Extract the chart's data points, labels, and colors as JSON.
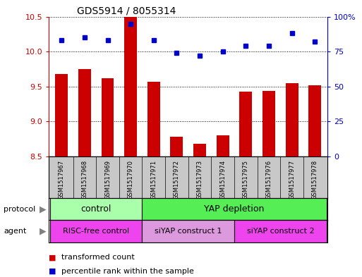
{
  "title": "GDS5914 / 8055314",
  "samples": [
    "GSM1517967",
    "GSM1517968",
    "GSM1517969",
    "GSM1517970",
    "GSM1517971",
    "GSM1517972",
    "GSM1517973",
    "GSM1517974",
    "GSM1517975",
    "GSM1517976",
    "GSM1517977",
    "GSM1517978"
  ],
  "transformed_counts": [
    9.68,
    9.75,
    9.62,
    10.5,
    9.57,
    8.78,
    8.68,
    8.8,
    9.43,
    9.44,
    9.55,
    9.52
  ],
  "percentile_ranks": [
    83,
    85,
    83,
    95,
    83,
    74,
    72,
    75,
    79,
    79,
    88,
    82
  ],
  "ylim_left": [
    8.5,
    10.5
  ],
  "ylim_right": [
    0,
    100
  ],
  "yticks_left": [
    8.5,
    9.0,
    9.5,
    10.0,
    10.5
  ],
  "yticks_right": [
    0,
    25,
    50,
    75,
    100
  ],
  "ytick_labels_right": [
    "0",
    "25",
    "50",
    "75",
    "100%"
  ],
  "bar_color": "#cc0000",
  "dot_color": "#0000cc",
  "protocol_groups": [
    {
      "label": "control",
      "start": 0,
      "end": 3,
      "color": "#aaffaa"
    },
    {
      "label": "YAP depletion",
      "start": 4,
      "end": 11,
      "color": "#55ee55"
    }
  ],
  "agent_groups": [
    {
      "label": "RISC-free control",
      "start": 0,
      "end": 3,
      "color": "#ee44ee"
    },
    {
      "label": "siYAP construct 1",
      "start": 4,
      "end": 7,
      "color": "#dd99dd"
    },
    {
      "label": "siYAP construct 2",
      "start": 8,
      "end": 11,
      "color": "#ee44ee"
    }
  ],
  "legend_items": [
    {
      "label": "transformed count",
      "color": "#cc0000"
    },
    {
      "label": "percentile rank within the sample",
      "color": "#0000cc"
    }
  ],
  "row_labels": [
    "protocol",
    "agent"
  ],
  "tick_color_left": "#cc0000",
  "tick_color_right": "#0000cc",
  "background_color": "#ffffff",
  "sample_bg_color": "#c8c8c8"
}
